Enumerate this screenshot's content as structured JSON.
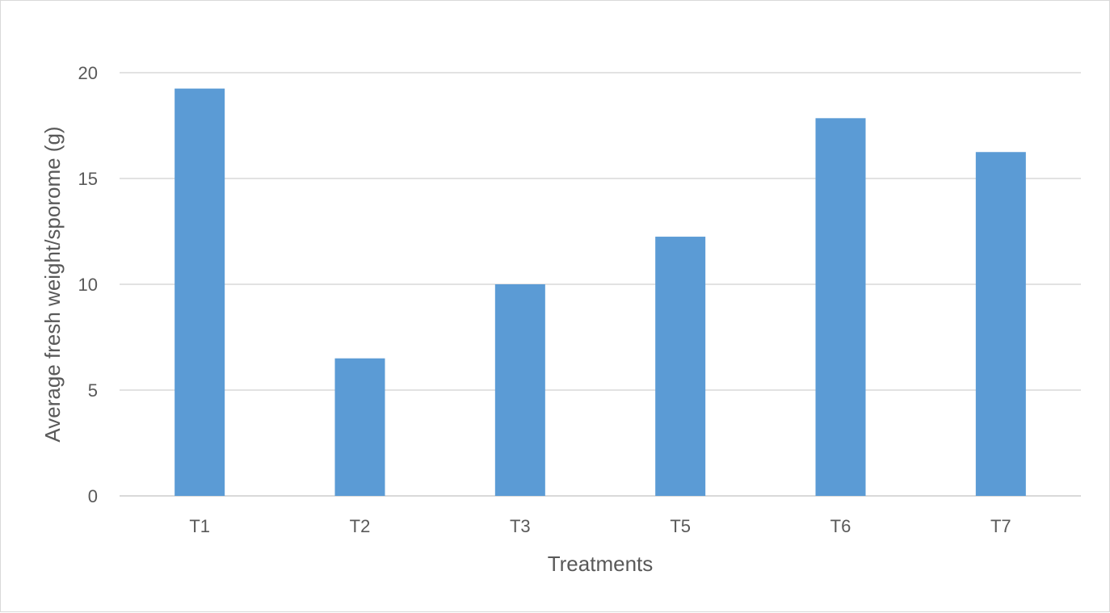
{
  "chart_data": {
    "type": "bar",
    "title": "",
    "xlabel": "Treatments",
    "ylabel": "Average fresh weight/sporome (g)",
    "categories": [
      "T1",
      "T2",
      "T3",
      "T5",
      "T6",
      "T7"
    ],
    "series": [
      {
        "values": [
          19.25,
          6.5,
          10.0,
          12.25,
          17.85,
          16.25
        ]
      }
    ],
    "ylim": [
      0,
      20
    ],
    "yticks": [
      0,
      5,
      10,
      15,
      20
    ],
    "ytick_labels": [
      "0",
      "5",
      "10",
      "15",
      "20"
    ],
    "grid": true,
    "legend": "none",
    "colors": {
      "bar": "#5B9BD5",
      "grid": "#d9d9d9",
      "text": "#595959"
    }
  }
}
